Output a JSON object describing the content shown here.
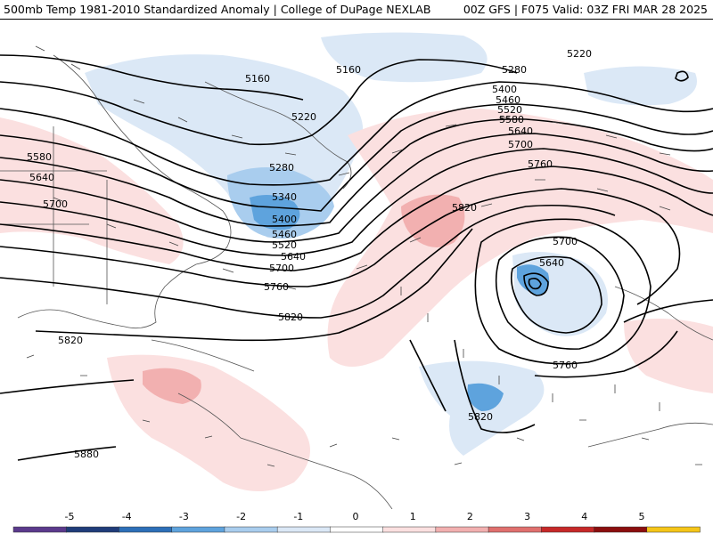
{
  "header": {
    "left_text": "500mb Temp 1981-2010 Standardized Anomaly | College of DuPage NEXLAB",
    "right_text": "00Z GFS | F075 Valid: 03Z FRI MAR 28 2025"
  },
  "contour_labels": {
    "h5160a": "5160",
    "h5160b": "5160",
    "h5220a": "5220",
    "h5220b": "5220",
    "h5280a": "5280",
    "h5280b": "5280",
    "h5340": "5340",
    "h5400a": "5400",
    "h5400b": "5400",
    "h5460a": "5460",
    "h5460b": "5460",
    "h5520a": "5520",
    "h5520b": "5520",
    "h5580a": "5580",
    "h5580b": "5580",
    "h5640a": "5640",
    "h5640b": "5640",
    "h5640c": "5640",
    "h5640d": "5640",
    "h5700a": "5700",
    "h5700b": "5700",
    "h5700c": "5700",
    "h5700d": "5700",
    "h5760a": "5760",
    "h5760b": "5760",
    "h5760c": "5760",
    "h5820a": "5820",
    "h5820b": "5820",
    "h5820c": "5820",
    "h5820d": "5820",
    "h5880": "5880"
  },
  "colorbar": {
    "ticks": [
      "-5",
      "-4",
      "-3",
      "-2",
      "-1",
      "0",
      "1",
      "2",
      "3",
      "4",
      "5"
    ],
    "colors": [
      "#5b3a8c",
      "#1f3c7a",
      "#2c6fb8",
      "#5ea3dd",
      "#a9cdee",
      "#dbe8f6",
      "#ffffff",
      "#fbe0e0",
      "#f2b0b0",
      "#e0706e",
      "#c62828",
      "#8b0e0e",
      "#f5c518"
    ]
  }
}
